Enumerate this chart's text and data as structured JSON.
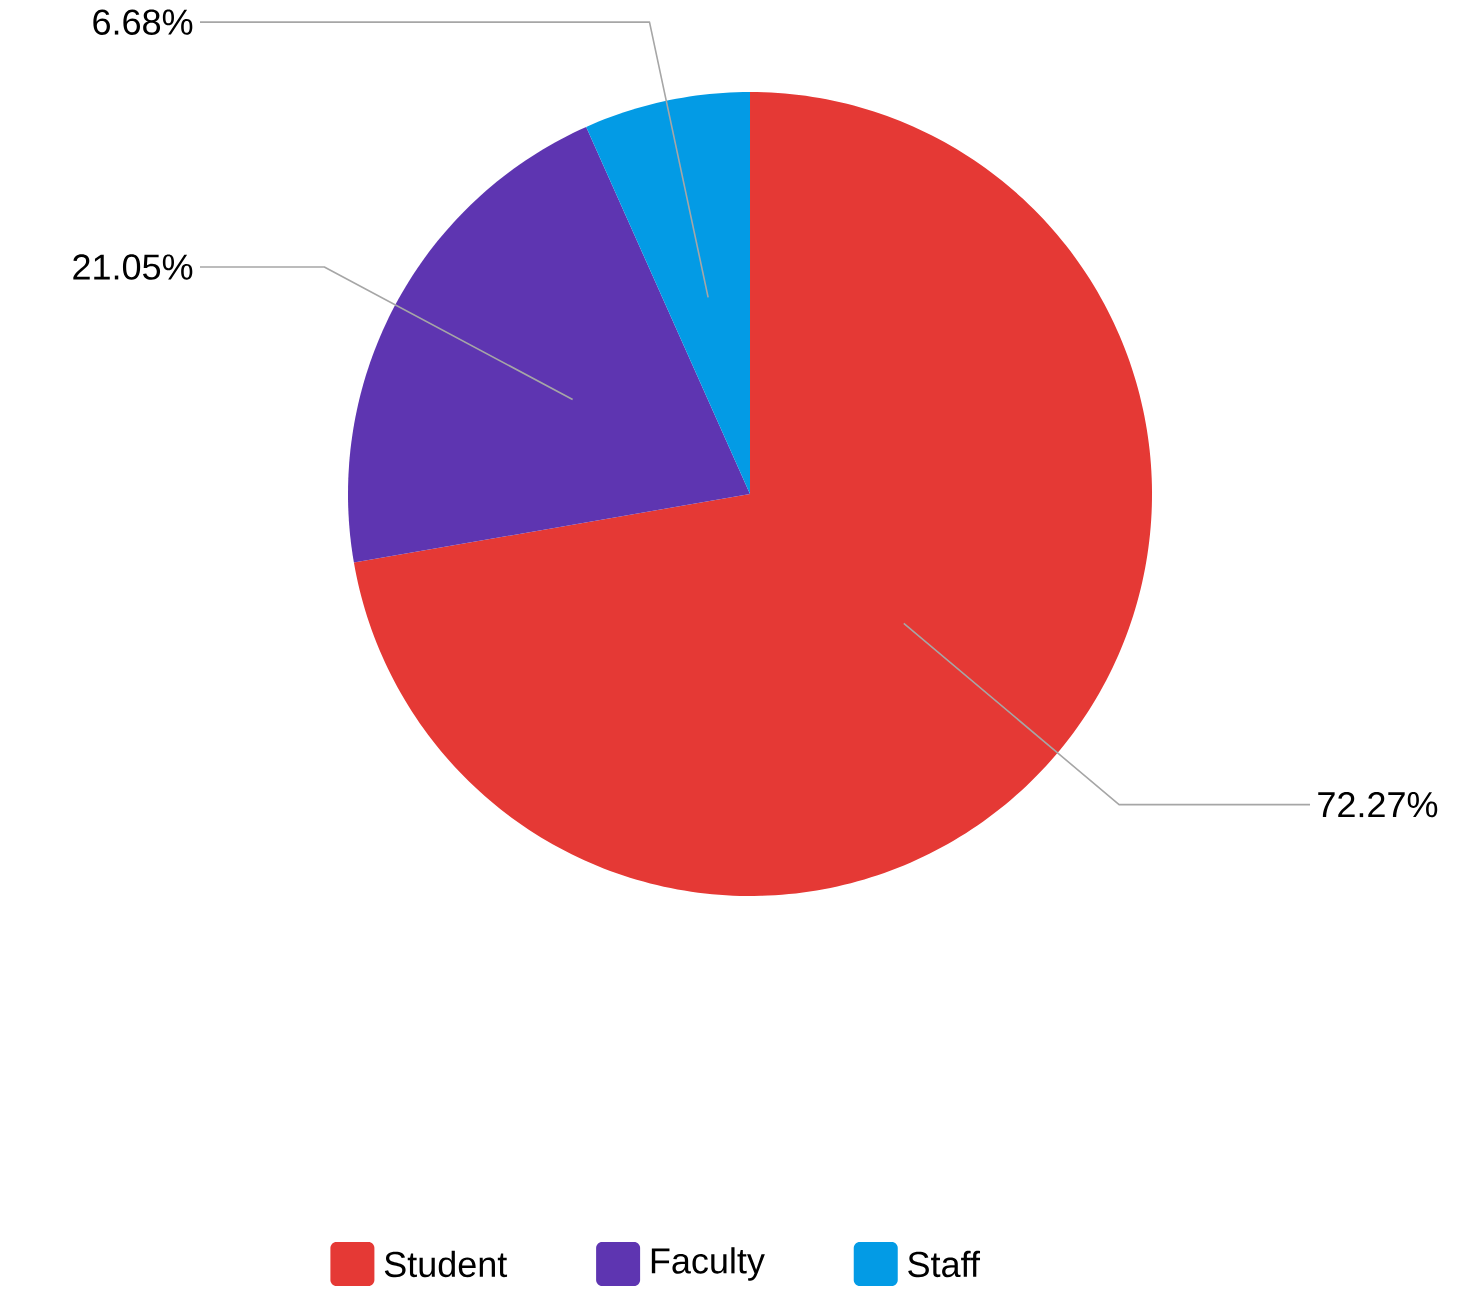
{
  "chart_data": {
    "type": "pie",
    "categories": [
      "Student",
      "Faculty",
      "Staff"
    ],
    "values": [
      72.27,
      21.05,
      6.68
    ],
    "colors": [
      "#e53935",
      "#5e35b1",
      "#039be5"
    ],
    "value_labels": [
      "72.27%",
      "21.05%",
      "6.68%"
    ],
    "legend": "bottom"
  }
}
